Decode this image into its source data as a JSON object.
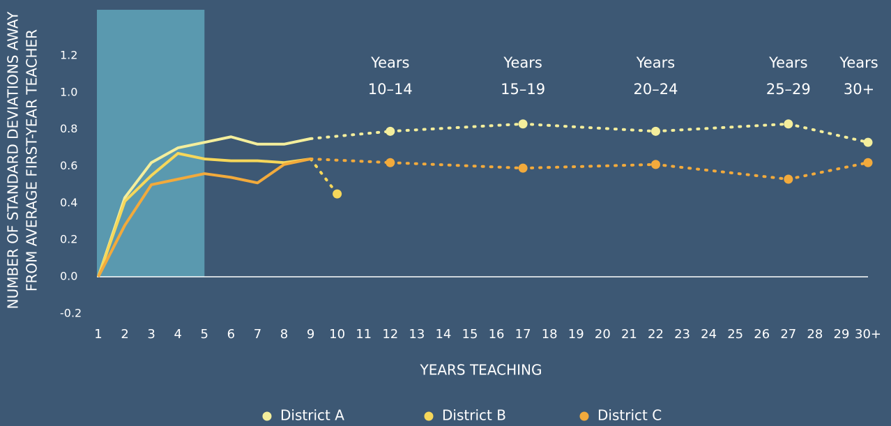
{
  "chart_data": {
    "type": "line",
    "ylabel": [
      "NUMBER OF STANDARD DEVIATIONS AWAY",
      "FROM AVERAGE FIRST-YEAR TEACHER"
    ],
    "xlabel": "YEARS TEACHING",
    "categories": [
      "1",
      "2",
      "3",
      "4",
      "5",
      "6",
      "7",
      "8",
      "9",
      "10",
      "11",
      "12",
      "13",
      "14",
      "15",
      "16",
      "17",
      "18",
      "19",
      "20",
      "21",
      "22",
      "23",
      "24",
      "25",
      "26",
      "27",
      "28",
      "29",
      "30+"
    ],
    "series": [
      {
        "name": "District A",
        "color": "#f4ee9c",
        "values": [
          0,
          0.43,
          0.62,
          0.7,
          0.73,
          0.76,
          0.72,
          0.72,
          0.75,
          null,
          null,
          0.79,
          null,
          null,
          null,
          null,
          0.83,
          null,
          null,
          null,
          null,
          0.79,
          null,
          null,
          null,
          null,
          0.83,
          null,
          null,
          0.73
        ]
      },
      {
        "name": "District B",
        "color": "#f6d75a",
        "values": [
          0,
          0.41,
          0.55,
          0.67,
          0.64,
          0.63,
          0.63,
          0.62,
          0.64,
          0.45,
          null,
          null,
          null,
          null,
          null,
          null,
          null,
          null,
          null,
          null,
          null,
          null,
          null,
          null,
          null,
          null,
          null,
          null,
          null,
          null
        ]
      },
      {
        "name": "District C",
        "color": "#f2aa3c",
        "values": [
          0,
          0.28,
          0.5,
          0.53,
          0.56,
          0.54,
          0.51,
          0.61,
          0.64,
          null,
          null,
          0.62,
          null,
          null,
          null,
          null,
          0.59,
          null,
          null,
          null,
          null,
          0.61,
          null,
          null,
          null,
          null,
          0.53,
          null,
          null,
          0.62
        ]
      }
    ],
    "dotted_after": "9",
    "shaded_range": [
      "1",
      "5"
    ],
    "ylim": [
      -0.2,
      1.45
    ],
    "yticks": [
      -0.2,
      {
        "value": 0,
        "label": "0.0"
      },
      0.2,
      0.4,
      0.6,
      0.8,
      {
        "value": 1,
        "label": "1.0"
      },
      1.2
    ],
    "annotations": [
      {
        "text": [
          "Years",
          "10–14"
        ],
        "x": "12"
      },
      {
        "text": [
          "Years",
          "15–19"
        ],
        "x": "17"
      },
      {
        "text": [
          "Years",
          "20–24"
        ],
        "x": "22"
      },
      {
        "text": [
          "Years",
          "25–29"
        ],
        "x": "27"
      },
      {
        "text": [
          "Years",
          "30+"
        ],
        "x": "30+"
      }
    ]
  }
}
